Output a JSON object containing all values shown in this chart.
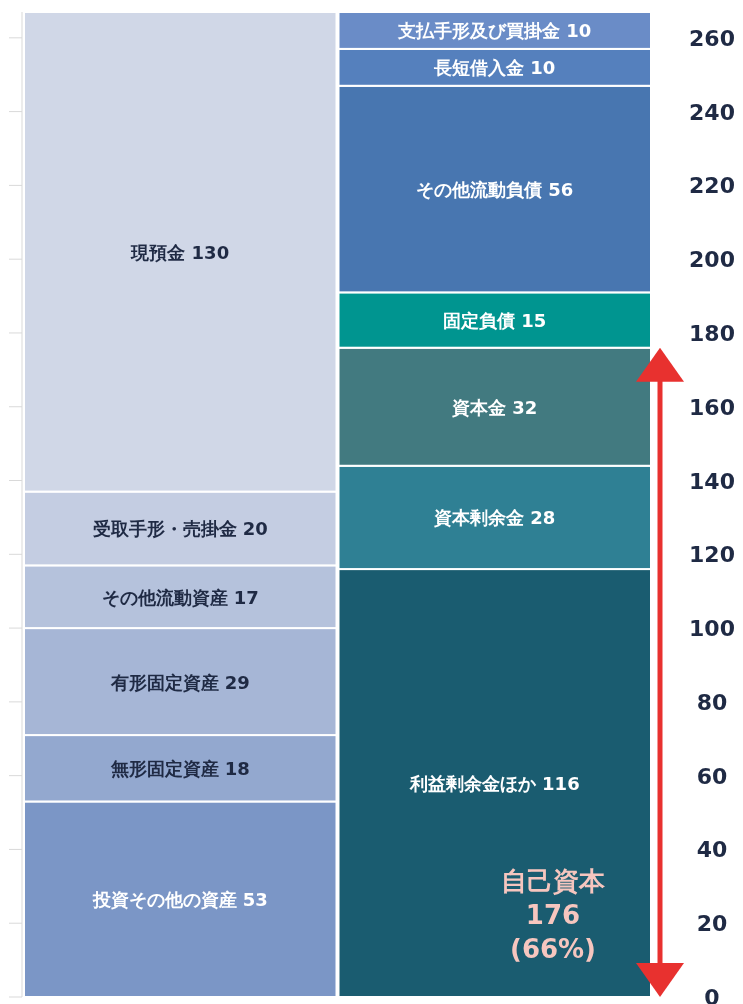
{
  "chart_data": {
    "type": "bar",
    "stacked": true,
    "categories": [
      null,
      null
    ],
    "series": [
      {
        "color": "#7b96c6",
        "values": [
          53,
          null
        ],
        "value_labels": [
          "投資その他の資産 53",
          null
        ]
      },
      {
        "color": "#93a8cf",
        "values": [
          18,
          null
        ],
        "value_labels": [
          "無形固定資産 18",
          null
        ]
      },
      {
        "color": "#a6b6d6",
        "values": [
          29,
          null
        ],
        "value_labels": [
          "有形固定資産 29",
          null
        ]
      },
      {
        "color": "#b5c2dc",
        "values": [
          17,
          null
        ],
        "value_labels": [
          "その他流動資産 17",
          null
        ]
      },
      {
        "color": "#c4cde2",
        "values": [
          20,
          null
        ],
        "value_labels": [
          "受取手形・売掛金 20",
          null
        ]
      },
      {
        "color": "#d0d7e7",
        "values": [
          130,
          null
        ],
        "value_labels": [
          "現預金 130",
          null
        ]
      },
      {
        "color": "#1a5c70",
        "values": [
          null,
          116
        ],
        "value_labels": [
          null,
          "利益剰余金ほか 116"
        ]
      },
      {
        "color": "#2f8094",
        "values": [
          null,
          28
        ],
        "value_labels": [
          null,
          "資本剰余金 28"
        ]
      },
      {
        "color": "#427a80",
        "values": [
          null,
          32
        ],
        "value_labels": [
          null,
          "資本金 32"
        ]
      },
      {
        "color": "#009590",
        "values": [
          null,
          15
        ],
        "value_labels": [
          null,
          "固定負債 15"
        ]
      },
      {
        "color": "#4876b0",
        "values": [
          null,
          56
        ],
        "value_labels": [
          null,
          "その他流動負債 56"
        ]
      },
      {
        "color": "#5580bd",
        "values": [
          null,
          10
        ],
        "value_labels": [
          null,
          "長短借入金 10"
        ]
      },
      {
        "color": "#6a8cc7",
        "values": [
          null,
          10
        ],
        "value_labels": [
          null,
          "支払手形及び買掛金 10"
        ]
      }
    ],
    "ylim": [
      0,
      267
    ],
    "yticks": [
      0,
      20,
      40,
      60,
      80,
      100,
      120,
      140,
      160,
      180,
      200,
      220,
      240,
      260
    ],
    "grid": false,
    "annotations": [
      "自己資本\n176\n(66%)"
    ]
  }
}
